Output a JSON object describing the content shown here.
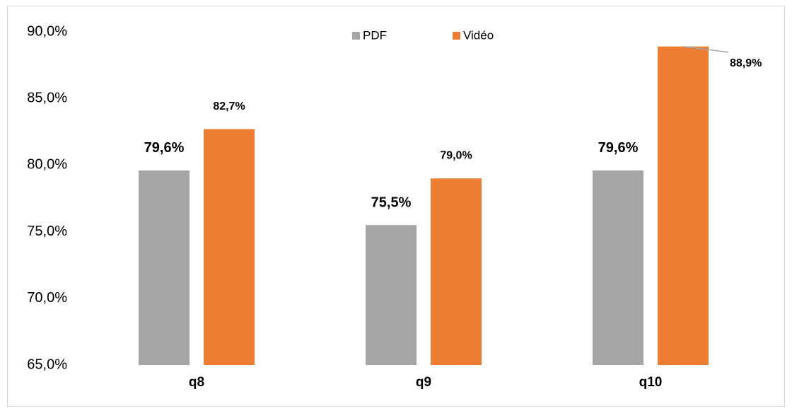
{
  "chart_data": {
    "type": "bar",
    "categories": [
      "q8",
      "q9",
      "q10"
    ],
    "series": [
      {
        "name": "PDF",
        "color": "#a5a5a5",
        "values": [
          79.6,
          75.5,
          79.6
        ],
        "value_labels": [
          "79,6%",
          "75,5%",
          "79,6%"
        ]
      },
      {
        "name": "Vidéo",
        "color": "#ed7d31",
        "values": [
          82.7,
          79.0,
          88.9
        ],
        "value_labels": [
          "82,7%",
          "79,0%",
          "88,9%"
        ]
      }
    ],
    "ylim": [
      65,
      90
    ],
    "yticks": [
      {
        "value": 65,
        "label": "65,0%"
      },
      {
        "value": 70,
        "label": "70,0%"
      },
      {
        "value": 75,
        "label": "75,0%"
      },
      {
        "value": 80,
        "label": "80,0%"
      },
      {
        "value": 85,
        "label": "85,0%"
      },
      {
        "value": 90,
        "label": "90,0%"
      }
    ],
    "grid": false,
    "legend": "top"
  }
}
